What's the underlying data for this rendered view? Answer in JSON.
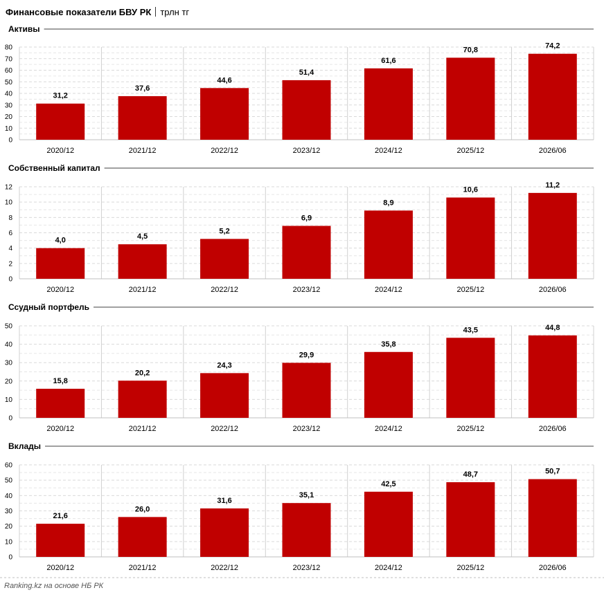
{
  "header": {
    "title": "Финансовые показатели БВУ РК",
    "unit": "трлн тг"
  },
  "source": "Ranking.kz на основе НБ РК",
  "colors": {
    "bar": "#C00000",
    "grid": "#D9D9D9",
    "text": "#000000"
  },
  "chart_data": [
    {
      "type": "bar",
      "title": "Активы",
      "categories": [
        "2020/12",
        "2021/12",
        "2022/12",
        "2023/12",
        "2024/12",
        "2025/12",
        "2026/06"
      ],
      "values": [
        31.2,
        37.6,
        44.6,
        51.4,
        61.6,
        70.8,
        74.2
      ],
      "value_labels": [
        "31,2",
        "37,6",
        "44,6",
        "51,4",
        "61,6",
        "70,8",
        "74,2"
      ],
      "yticks": [
        "0",
        "10",
        "20",
        "30",
        "40",
        "50",
        "60",
        "70",
        "80"
      ],
      "ylim": [
        0,
        80
      ],
      "grid": true
    },
    {
      "type": "bar",
      "title": "Собственный капитал",
      "categories": [
        "2020/12",
        "2021/12",
        "2022/12",
        "2023/12",
        "2024/12",
        "2025/12",
        "2026/06"
      ],
      "values": [
        4.0,
        4.5,
        5.2,
        6.9,
        8.9,
        10.6,
        11.2
      ],
      "value_labels": [
        "4,0",
        "4,5",
        "5,2",
        "6,9",
        "8,9",
        "10,6",
        "11,2"
      ],
      "yticks": [
        "0",
        "2",
        "4",
        "6",
        "8",
        "10",
        "12"
      ],
      "ylim": [
        0,
        12
      ],
      "grid": true
    },
    {
      "type": "bar",
      "title": "Ссудный портфель",
      "categories": [
        "2020/12",
        "2021/12",
        "2022/12",
        "2023/12",
        "2024/12",
        "2025/12",
        "2026/06"
      ],
      "values": [
        15.8,
        20.2,
        24.3,
        29.9,
        35.8,
        43.5,
        44.8
      ],
      "value_labels": [
        "15,8",
        "20,2",
        "24,3",
        "29,9",
        "35,8",
        "43,5",
        "44,8"
      ],
      "yticks": [
        "0",
        "10",
        "20",
        "30",
        "40",
        "50"
      ],
      "ylim": [
        0,
        50
      ],
      "grid": true
    },
    {
      "type": "bar",
      "title": "Вклады",
      "categories": [
        "2020/12",
        "2021/12",
        "2022/12",
        "2023/12",
        "2024/12",
        "2025/12",
        "2026/06"
      ],
      "values": [
        21.6,
        26.0,
        31.6,
        35.1,
        42.5,
        48.7,
        50.7
      ],
      "value_labels": [
        "21,6",
        "26,0",
        "31,6",
        "35,1",
        "42,5",
        "48,7",
        "50,7"
      ],
      "yticks": [
        "0",
        "10",
        "20",
        "30",
        "40",
        "50",
        "60"
      ],
      "ylim": [
        0,
        60
      ],
      "grid": true
    }
  ]
}
